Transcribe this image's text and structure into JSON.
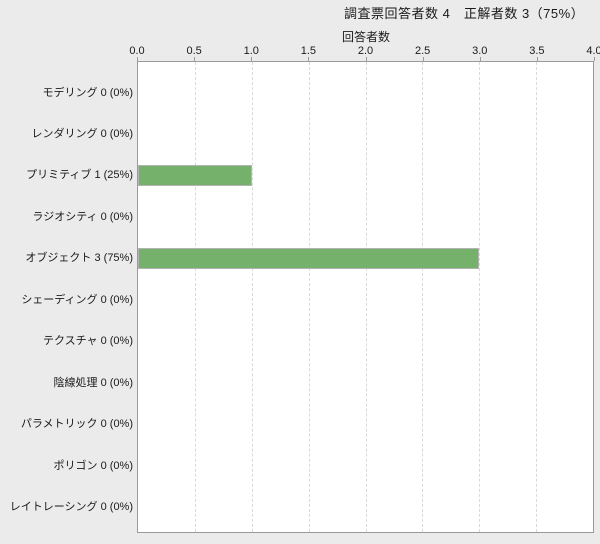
{
  "header": {
    "title": "調査票回答者数 4　正解者数 3（75%）",
    "survey_respondents_label": "調査票回答者数",
    "survey_respondents": 4,
    "correct_answers_label": "正解者数",
    "correct_answers": 3,
    "correct_percent": "75%"
  },
  "chart_data": {
    "type": "bar",
    "orientation": "horizontal",
    "title": "調査票回答者数 4　正解者数 3（75%）",
    "xlabel": "回答者数",
    "ylabel": "",
    "xlim": [
      0,
      4
    ],
    "x_ticks": [
      "0.0",
      "0.5",
      "1.0",
      "1.5",
      "2.0",
      "2.5",
      "3.0",
      "3.5",
      "4.0"
    ],
    "grid": "vertical-dashed",
    "legend": "none",
    "categories": [
      {
        "name": "モデリング",
        "value": 0,
        "percent": "0%",
        "label": "モデリング 0 (0%)"
      },
      {
        "name": "レンダリング",
        "value": 0,
        "percent": "0%",
        "label": "レンダリング 0 (0%)"
      },
      {
        "name": "プリミティブ",
        "value": 1,
        "percent": "25%",
        "label": "プリミティブ 1 (25%)"
      },
      {
        "name": "ラジオシティ",
        "value": 0,
        "percent": "0%",
        "label": "ラジオシティ 0 (0%)"
      },
      {
        "name": "オブジェクト",
        "value": 3,
        "percent": "75%",
        "label": "オブジェクト 3 (75%)"
      },
      {
        "name": "シェーディング",
        "value": 0,
        "percent": "0%",
        "label": "シェーディング 0 (0%)"
      },
      {
        "name": "テクスチャ",
        "value": 0,
        "percent": "0%",
        "label": "テクスチャ 0 (0%)"
      },
      {
        "name": "陰線処理",
        "value": 0,
        "percent": "0%",
        "label": "陰線処理 0 (0%)"
      },
      {
        "name": "パラメトリック",
        "value": 0,
        "percent": "0%",
        "label": "パラメトリック 0 (0%)"
      },
      {
        "name": "ポリゴン",
        "value": 0,
        "percent": "0%",
        "label": "ポリゴン 0 (0%)"
      },
      {
        "name": "レイトレーシング",
        "value": 0,
        "percent": "0%",
        "label": "レイトレーシング 0 (0%)"
      }
    ],
    "colors": {
      "bar_fill": "#75b16b",
      "bar_border": "#b3b3b3",
      "grid": "#d9d9d9",
      "axis": "#9a9a9a",
      "plot_bg": "#ffffff",
      "page_bg": "#ebebeb",
      "text": "#1a1a1a"
    }
  }
}
